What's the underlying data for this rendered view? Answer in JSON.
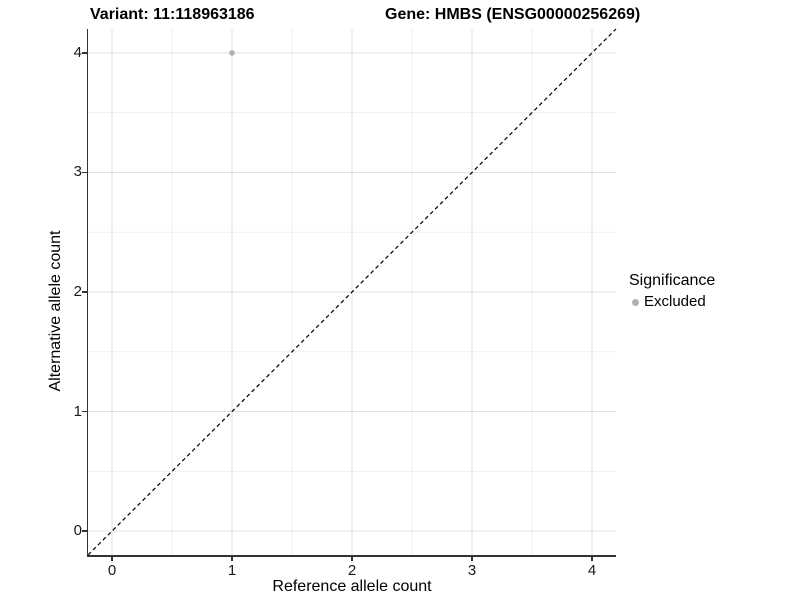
{
  "titles": {
    "variant": "Variant: 11:118963186",
    "gene": "Gene: HMBS (ENSG00000256269)"
  },
  "axes": {
    "x": {
      "label": "Reference allele count",
      "ticks": [
        "0",
        "1",
        "2",
        "3",
        "4"
      ],
      "tick_values": [
        0,
        1,
        2,
        3,
        4
      ],
      "range": [
        -0.2,
        4.2
      ]
    },
    "y": {
      "label": "Alternative allele count",
      "ticks": [
        "0",
        "1",
        "2",
        "3",
        "4"
      ],
      "tick_values": [
        0,
        1,
        2,
        3,
        4
      ],
      "range": [
        -0.2,
        4.2
      ]
    }
  },
  "legend": {
    "title": "Significance",
    "items": [
      {
        "label": "Excluded",
        "color": "#b0b0b0"
      }
    ]
  },
  "colors": {
    "background": "#ffffff",
    "major_grid": "#e2e2e2",
    "minor_grid": "#efefef",
    "axis": "#333333",
    "reference_line": "#000000",
    "point": "#b0b0b0",
    "text": "#000000"
  },
  "chart_data": {
    "type": "scatter",
    "title": "Variant: 11:118963186    Gene: HMBS (ENSG00000256269)",
    "xlabel": "Reference allele count",
    "ylabel": "Alternative allele count",
    "xlim": [
      -0.2,
      4.2
    ],
    "ylim": [
      -0.2,
      4.2
    ],
    "x_ticks": [
      0,
      1,
      2,
      3,
      4
    ],
    "y_ticks": [
      0,
      1,
      2,
      3,
      4
    ],
    "grid": "major and minor, light gray on white",
    "legend_position": "right",
    "series": [
      {
        "name": "Excluded",
        "color": "#b0b0b0",
        "points": [
          {
            "x": 1,
            "y": 4
          }
        ]
      }
    ],
    "reference_line": {
      "type": "identity y=x",
      "style": "dashed",
      "color": "#000000"
    }
  }
}
